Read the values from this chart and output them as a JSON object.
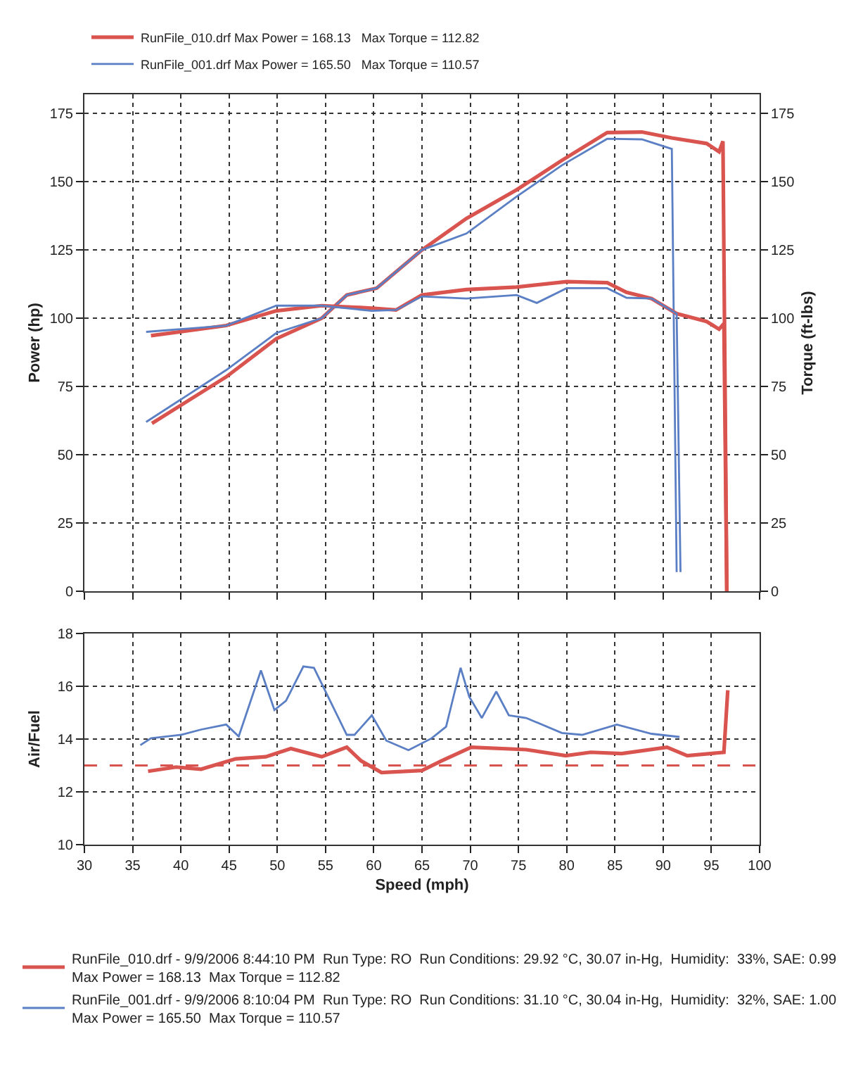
{
  "chart_data": [
    {
      "type": "line",
      "xlim": [
        30,
        100
      ],
      "xticks": [
        30,
        35,
        40,
        45,
        50,
        55,
        60,
        65,
        70,
        75,
        80,
        85,
        90,
        95,
        100
      ],
      "ylim": [
        0,
        182
      ],
      "yticks": [
        0,
        25,
        50,
        75,
        100,
        125,
        150,
        175
      ],
      "y2lim": [
        0,
        182
      ],
      "y2ticks": [
        0,
        25,
        50,
        75,
        100,
        125,
        150,
        175
      ],
      "ylabel": "Power (hp)",
      "y2label": "Torque (ft-lbs)",
      "tick_labels": "y",
      "grid": true,
      "legend": "top left",
      "line_style": "solid",
      "series": [
        {
          "name": "RunFile_010.drf Max Power = 168.13   Max Torque = 112.82",
          "color": "#d9534f",
          "axis": "y",
          "x": [
            37,
            44.7,
            49.9,
            54.6,
            57.2,
            60.3,
            65,
            69.6,
            74.8,
            79.5,
            84.2,
            87.8,
            90.9,
            94.5,
            95.8,
            96.2,
            96.6
          ],
          "values": [
            61.5,
            78.5,
            92.5,
            100,
            108.5,
            111,
            125,
            136.5,
            147,
            157.8,
            168,
            168.2,
            166,
            164,
            161,
            164.8,
            0
          ]
        },
        {
          "color": "#d9534f",
          "axis": "y2",
          "x": [
            36.9,
            44.7,
            49.9,
            54.6,
            59.8,
            62.3,
            65,
            69.6,
            74.8,
            80,
            84.2,
            86.2,
            88.8,
            91.4,
            94.5,
            95.8,
            96.3,
            96.6
          ],
          "values": [
            93.6,
            97.3,
            102.7,
            104.6,
            103.7,
            103,
            108.5,
            110.5,
            111.4,
            113.4,
            113,
            109.5,
            107.2,
            101.7,
            98.8,
            96,
            98,
            0
          ]
        },
        {
          "name": "RunFile_001.drf Max Power = 165.50   Max Torque = 110.57",
          "color": "#5b7fc4",
          "axis": "y",
          "x": [
            36.4,
            44.7,
            49.9,
            54.6,
            57.2,
            60.3,
            65,
            69.6,
            74.8,
            79.5,
            84.2,
            87.8,
            90.9,
            91.4
          ],
          "values": [
            62,
            81,
            94.6,
            100,
            108.5,
            111,
            125,
            131,
            144.5,
            156,
            165.7,
            165.5,
            162,
            7
          ]
        },
        {
          "color": "#5b7fc4",
          "axis": "y2",
          "x": [
            36.4,
            44.7,
            49.9,
            54.6,
            59.8,
            62.3,
            65,
            69.6,
            74.8,
            76.9,
            80,
            84.2,
            86.2,
            88.8,
            91.4,
            91.8
          ],
          "values": [
            95,
            97.3,
            104.6,
            104.6,
            102.7,
            103,
            108,
            107.2,
            108.5,
            105.6,
            111,
            111,
            107.5,
            107.2,
            101.7,
            7
          ]
        }
      ]
    },
    {
      "type": "line",
      "xlim": [
        30,
        100
      ],
      "xticks": [
        30,
        35,
        40,
        45,
        50,
        55,
        60,
        65,
        70,
        75,
        80,
        85,
        90,
        95,
        100
      ],
      "ylim": [
        10,
        18
      ],
      "yticks": [
        10,
        12,
        14,
        16,
        18
      ],
      "xlabel": "Speed (mph)",
      "ylabel": "Air/Fuel",
      "grid": true,
      "legend": "bottom",
      "line_style": "solid",
      "ref_lines": [
        {
          "axis": "y",
          "value": 13,
          "color": "#d9534f",
          "line_style": "dashed"
        }
      ],
      "series": [
        {
          "name": "RunFile_010.drf - 9/9/2006 8:44:10 PM  Run Type: RO  Run Conditions: 29.92 °C, 30.07 in-Hg,  Humidity:  33%, SAE: 0.99\nMax Power = 168.13  Max Torque = 112.82",
          "color": "#d9534f",
          "x": [
            36.6,
            39.5,
            42.1,
            45.7,
            48.8,
            51.4,
            54.6,
            57.2,
            58.7,
            60.8,
            65,
            67,
            70.1,
            75.8,
            79.9,
            82.5,
            85.7,
            90.4,
            92.5,
            96.3,
            96.7
          ],
          "values": [
            12.78,
            12.94,
            12.86,
            13.25,
            13.33,
            13.64,
            13.33,
            13.69,
            13.17,
            12.73,
            12.81,
            13.17,
            13.69,
            13.6,
            13.37,
            13.5,
            13.45,
            13.69,
            13.37,
            13.5,
            15.85
          ]
        },
        {
          "name": "RunFile_001.drf - 9/9/2006 8:10:04 PM  Run Type: RO  Run Conditions: 31.10 °C, 30.04 in-Hg,  Humidity:  32%, SAE: 1.00\nMax Power = 165.50  Max Torque = 110.57",
          "color": "#5b7fc4",
          "x": [
            35.8,
            36.9,
            40,
            42.1,
            44.7,
            46,
            48.3,
            49.7,
            50.9,
            52.7,
            53.8,
            57.2,
            58,
            59.8,
            61.3,
            63.6,
            66,
            67.5,
            69,
            69.9,
            71.2,
            72.7,
            74,
            75.8,
            79.5,
            81.6,
            85.2,
            88.8,
            91.7
          ],
          "values": [
            13.77,
            14.03,
            14.16,
            14.36,
            14.55,
            14.1,
            16.6,
            15.1,
            15.45,
            16.75,
            16.7,
            14.16,
            14.16,
            14.9,
            13.94,
            13.58,
            14.03,
            14.47,
            16.7,
            15.6,
            14.8,
            15.8,
            14.9,
            14.8,
            14.23,
            14.16,
            14.55,
            14.2,
            14.08
          ]
        }
      ]
    }
  ]
}
